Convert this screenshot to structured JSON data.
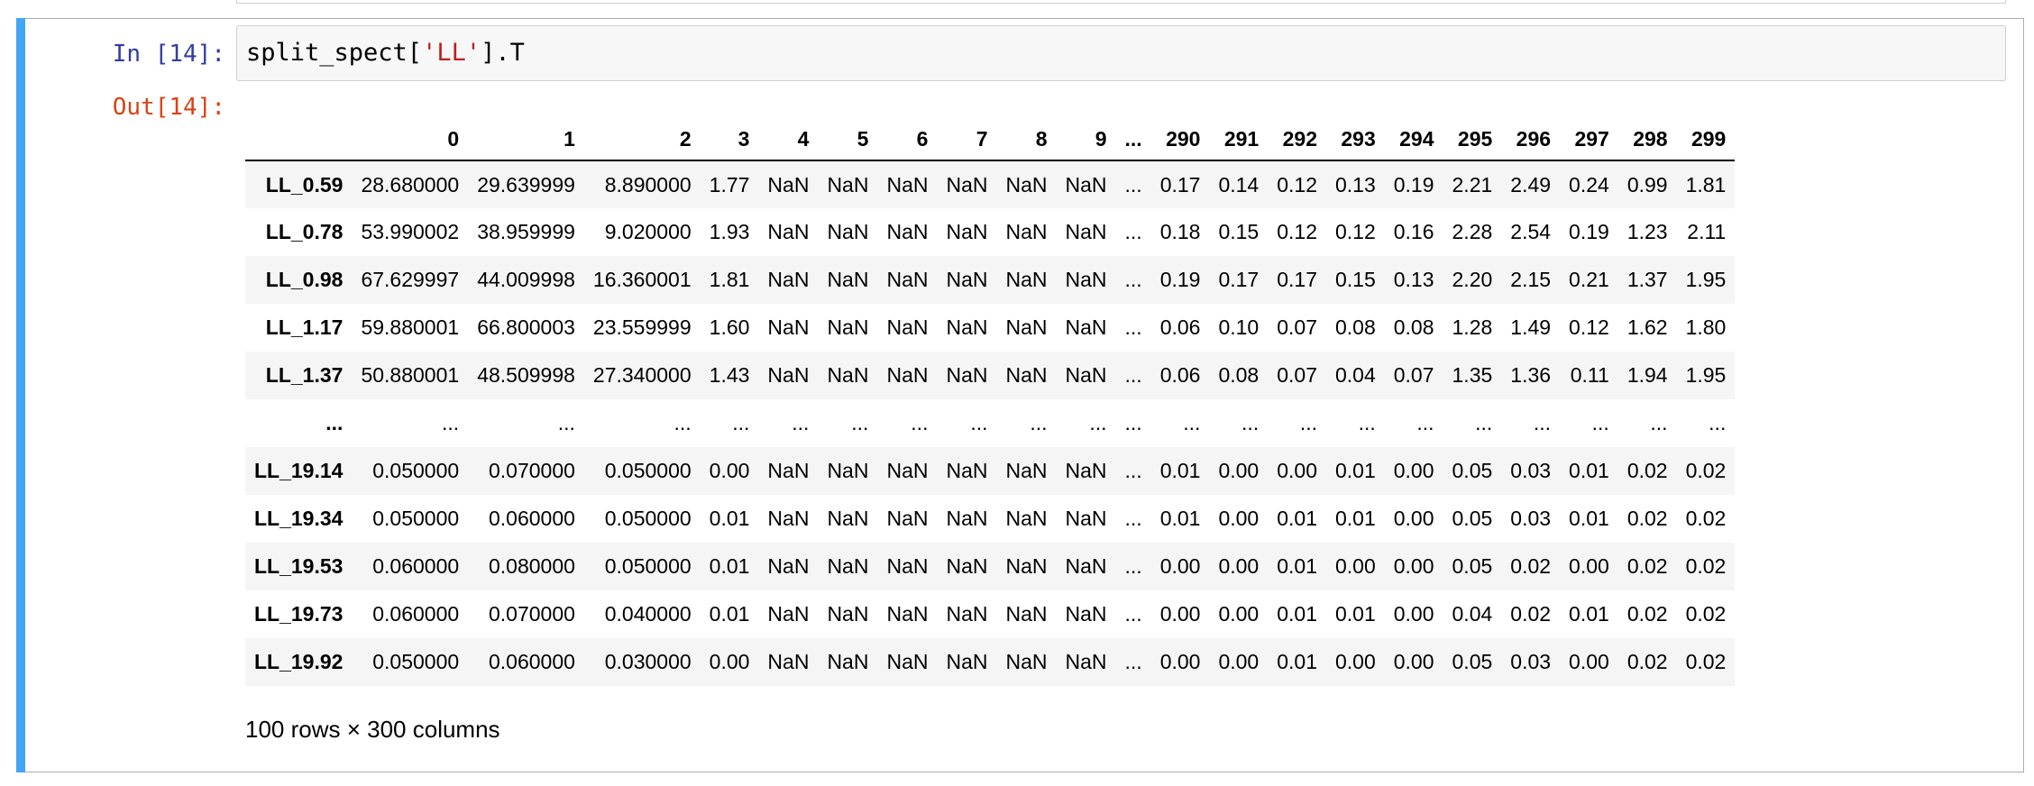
{
  "cell": {
    "in_prompt": "In [14]:",
    "out_prompt": "Out[14]:",
    "code_var": "split_spect[",
    "code_str": "'LL'",
    "code_tail": "].T"
  },
  "table": {
    "columns": [
      "0",
      "1",
      "2",
      "3",
      "4",
      "5",
      "6",
      "7",
      "8",
      "9",
      "...",
      "290",
      "291",
      "292",
      "293",
      "294",
      "295",
      "296",
      "297",
      "298",
      "299"
    ],
    "rows": [
      {
        "index": "LL_0.59",
        "cells": [
          "28.680000",
          "29.639999",
          "8.890000",
          "1.77",
          "NaN",
          "NaN",
          "NaN",
          "NaN",
          "NaN",
          "NaN",
          "...",
          "0.17",
          "0.14",
          "0.12",
          "0.13",
          "0.19",
          "2.21",
          "2.49",
          "0.24",
          "0.99",
          "1.81"
        ]
      },
      {
        "index": "LL_0.78",
        "cells": [
          "53.990002",
          "38.959999",
          "9.020000",
          "1.93",
          "NaN",
          "NaN",
          "NaN",
          "NaN",
          "NaN",
          "NaN",
          "...",
          "0.18",
          "0.15",
          "0.12",
          "0.12",
          "0.16",
          "2.28",
          "2.54",
          "0.19",
          "1.23",
          "2.11"
        ]
      },
      {
        "index": "LL_0.98",
        "cells": [
          "67.629997",
          "44.009998",
          "16.360001",
          "1.81",
          "NaN",
          "NaN",
          "NaN",
          "NaN",
          "NaN",
          "NaN",
          "...",
          "0.19",
          "0.17",
          "0.17",
          "0.15",
          "0.13",
          "2.20",
          "2.15",
          "0.21",
          "1.37",
          "1.95"
        ]
      },
      {
        "index": "LL_1.17",
        "cells": [
          "59.880001",
          "66.800003",
          "23.559999",
          "1.60",
          "NaN",
          "NaN",
          "NaN",
          "NaN",
          "NaN",
          "NaN",
          "...",
          "0.06",
          "0.10",
          "0.07",
          "0.08",
          "0.08",
          "1.28",
          "1.49",
          "0.12",
          "1.62",
          "1.80"
        ]
      },
      {
        "index": "LL_1.37",
        "cells": [
          "50.880001",
          "48.509998",
          "27.340000",
          "1.43",
          "NaN",
          "NaN",
          "NaN",
          "NaN",
          "NaN",
          "NaN",
          "...",
          "0.06",
          "0.08",
          "0.07",
          "0.04",
          "0.07",
          "1.35",
          "1.36",
          "0.11",
          "1.94",
          "1.95"
        ]
      },
      {
        "index": "...",
        "cells": [
          "...",
          "...",
          "...",
          "...",
          "...",
          "...",
          "...",
          "...",
          "...",
          "...",
          "...",
          "...",
          "...",
          "...",
          "...",
          "...",
          "...",
          "...",
          "...",
          "...",
          "..."
        ]
      },
      {
        "index": "LL_19.14",
        "cells": [
          "0.050000",
          "0.070000",
          "0.050000",
          "0.00",
          "NaN",
          "NaN",
          "NaN",
          "NaN",
          "NaN",
          "NaN",
          "...",
          "0.01",
          "0.00",
          "0.00",
          "0.01",
          "0.00",
          "0.05",
          "0.03",
          "0.01",
          "0.02",
          "0.02"
        ]
      },
      {
        "index": "LL_19.34",
        "cells": [
          "0.050000",
          "0.060000",
          "0.050000",
          "0.01",
          "NaN",
          "NaN",
          "NaN",
          "NaN",
          "NaN",
          "NaN",
          "...",
          "0.01",
          "0.00",
          "0.01",
          "0.01",
          "0.00",
          "0.05",
          "0.03",
          "0.01",
          "0.02",
          "0.02"
        ]
      },
      {
        "index": "LL_19.53",
        "cells": [
          "0.060000",
          "0.080000",
          "0.050000",
          "0.01",
          "NaN",
          "NaN",
          "NaN",
          "NaN",
          "NaN",
          "NaN",
          "...",
          "0.00",
          "0.00",
          "0.01",
          "0.00",
          "0.00",
          "0.05",
          "0.02",
          "0.00",
          "0.02",
          "0.02"
        ]
      },
      {
        "index": "LL_19.73",
        "cells": [
          "0.060000",
          "0.070000",
          "0.040000",
          "0.01",
          "NaN",
          "NaN",
          "NaN",
          "NaN",
          "NaN",
          "NaN",
          "...",
          "0.00",
          "0.00",
          "0.01",
          "0.01",
          "0.00",
          "0.04",
          "0.02",
          "0.01",
          "0.02",
          "0.02"
        ]
      },
      {
        "index": "LL_19.92",
        "cells": [
          "0.050000",
          "0.060000",
          "0.030000",
          "0.00",
          "NaN",
          "NaN",
          "NaN",
          "NaN",
          "NaN",
          "NaN",
          "...",
          "0.00",
          "0.00",
          "0.01",
          "0.00",
          "0.00",
          "0.05",
          "0.03",
          "0.00",
          "0.02",
          "0.02"
        ]
      }
    ],
    "shape": "100 rows × 300 columns"
  }
}
